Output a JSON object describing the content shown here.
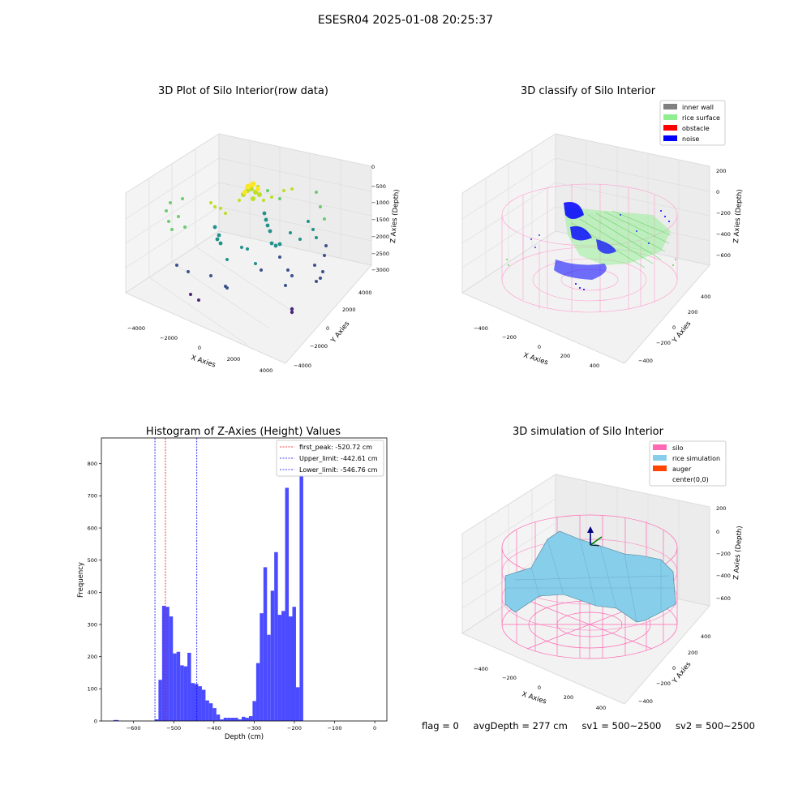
{
  "figure": {
    "title": "ESESR04 2025-01-08 20:25:37"
  },
  "panels": {
    "raw": {
      "title": "3D Plot of Silo Interior(row data)",
      "xlabel": "X Axies",
      "ylabel": "Y Axies",
      "zlabel": "Z Axies (Depth)",
      "xticks": [
        "−4000",
        "−2000",
        "0",
        "2000",
        "4000"
      ],
      "yticks": [
        "−4000",
        "−2000",
        "0",
        "2000",
        "4000"
      ],
      "zticks": [
        "0",
        "−500",
        "−1000",
        "−1500",
        "−2000",
        "−2500",
        "−3000"
      ]
    },
    "classify": {
      "title": "3D classify of Silo Interior",
      "xlabel": "X Axies",
      "ylabel": "Y Axies",
      "zlabel": "Z Axies (Depth)",
      "xticks": [
        "−400",
        "−200",
        "0",
        "200",
        "400"
      ],
      "yticks": [
        "−400",
        "−200",
        "0",
        "200",
        "400"
      ],
      "zticks": [
        "200",
        "0",
        "−200",
        "−400",
        "−600"
      ],
      "legend": [
        {
          "label": "inner wall",
          "color": "#808080"
        },
        {
          "label": "rice surface",
          "color": "#90ee90"
        },
        {
          "label": "obstacle",
          "color": "#ff0000"
        },
        {
          "label": "noise",
          "color": "#0000ff"
        }
      ]
    },
    "simulation": {
      "title": "3D simulation of Silo Interior",
      "xlabel": "X Axies",
      "ylabel": "Y Axies",
      "zlabel": "Z Axies (Depth)",
      "xticks": [
        "−400",
        "−200",
        "0",
        "200",
        "400"
      ],
      "yticks": [
        "−400",
        "−200",
        "0",
        "200",
        "400"
      ],
      "zticks": [
        "200",
        "0",
        "−200",
        "−400",
        "−600"
      ],
      "legend": [
        {
          "label": "silo",
          "color": "#ff69b4"
        },
        {
          "label": "rice simulation",
          "color": "#87ceeb"
        },
        {
          "label": "auger",
          "color": "#ff4500"
        },
        {
          "label": "center(0,0)",
          "color": "#ffffff"
        }
      ]
    }
  },
  "footer": {
    "flag": "flag = 0",
    "avg_depth": "avgDepth = 277 cm",
    "sv1": "sv1 = 500~2500",
    "sv2": "sv2 = 500~2500"
  },
  "chart_data": {
    "type": "bar",
    "title": "Histogram of Z-Axies (Height) Values",
    "xlabel": "Depth (cm)",
    "ylabel": "Frequency",
    "xlim": [
      -680,
      30
    ],
    "ylim": [
      0,
      880
    ],
    "xticks": [
      -600,
      -500,
      -400,
      -300,
      -200,
      -100,
      0
    ],
    "yticks": [
      0,
      100,
      200,
      300,
      400,
      500,
      600,
      700,
      800
    ],
    "bar_color": "#4b4bff",
    "bins": [
      {
        "x0": -650,
        "x1": -637,
        "count": 3
      },
      {
        "x0": -547,
        "x1": -538,
        "count": 5
      },
      {
        "x0": -538,
        "x1": -529,
        "count": 128
      },
      {
        "x0": -529,
        "x1": -520,
        "count": 358
      },
      {
        "x0": -520,
        "x1": -511,
        "count": 355
      },
      {
        "x0": -511,
        "x1": -502,
        "count": 325
      },
      {
        "x0": -502,
        "x1": -493,
        "count": 210
      },
      {
        "x0": -493,
        "x1": -484,
        "count": 215
      },
      {
        "x0": -484,
        "x1": -475,
        "count": 173
      },
      {
        "x0": -475,
        "x1": -466,
        "count": 170
      },
      {
        "x0": -466,
        "x1": -457,
        "count": 212
      },
      {
        "x0": -457,
        "x1": -448,
        "count": 118
      },
      {
        "x0": -448,
        "x1": -439,
        "count": 115
      },
      {
        "x0": -439,
        "x1": -430,
        "count": 108
      },
      {
        "x0": -430,
        "x1": -421,
        "count": 97
      },
      {
        "x0": -421,
        "x1": -412,
        "count": 64
      },
      {
        "x0": -412,
        "x1": -403,
        "count": 55
      },
      {
        "x0": -403,
        "x1": -394,
        "count": 40
      },
      {
        "x0": -394,
        "x1": -385,
        "count": 20
      },
      {
        "x0": -385,
        "x1": -376,
        "count": 5
      },
      {
        "x0": -376,
        "x1": -367,
        "count": 10
      },
      {
        "x0": -367,
        "x1": -358,
        "count": 10
      },
      {
        "x0": -358,
        "x1": -349,
        "count": 10
      },
      {
        "x0": -349,
        "x1": -340,
        "count": 10
      },
      {
        "x0": -340,
        "x1": -331,
        "count": 5
      },
      {
        "x0": -331,
        "x1": -322,
        "count": 13
      },
      {
        "x0": -322,
        "x1": -313,
        "count": 10
      },
      {
        "x0": -313,
        "x1": -304,
        "count": 15
      },
      {
        "x0": -304,
        "x1": -295,
        "count": 62
      },
      {
        "x0": -295,
        "x1": -286,
        "count": 180
      },
      {
        "x0": -286,
        "x1": -277,
        "count": 335
      },
      {
        "x0": -277,
        "x1": -268,
        "count": 478
      },
      {
        "x0": -268,
        "x1": -259,
        "count": 268
      },
      {
        "x0": -259,
        "x1": -250,
        "count": 405
      },
      {
        "x0": -250,
        "x1": -241,
        "count": 525
      },
      {
        "x0": -241,
        "x1": -232,
        "count": 330
      },
      {
        "x0": -232,
        "x1": -223,
        "count": 342
      },
      {
        "x0": -223,
        "x1": -214,
        "count": 725
      },
      {
        "x0": -214,
        "x1": -205,
        "count": 325
      },
      {
        "x0": -205,
        "x1": -196,
        "count": 355
      },
      {
        "x0": -196,
        "x1": -187,
        "count": 105
      },
      {
        "x0": -187,
        "x1": -178,
        "count": 840
      }
    ],
    "lines": [
      {
        "label": "first_peak: -520.72 cm",
        "x": -520.72,
        "color": "#ff0000"
      },
      {
        "label": "Upper_limit: -442.61 cm",
        "x": -442.61,
        "color": "#0000ff"
      },
      {
        "label": "Lower_limit: -546.76 cm",
        "x": -546.76,
        "color": "#0000ff"
      }
    ]
  }
}
